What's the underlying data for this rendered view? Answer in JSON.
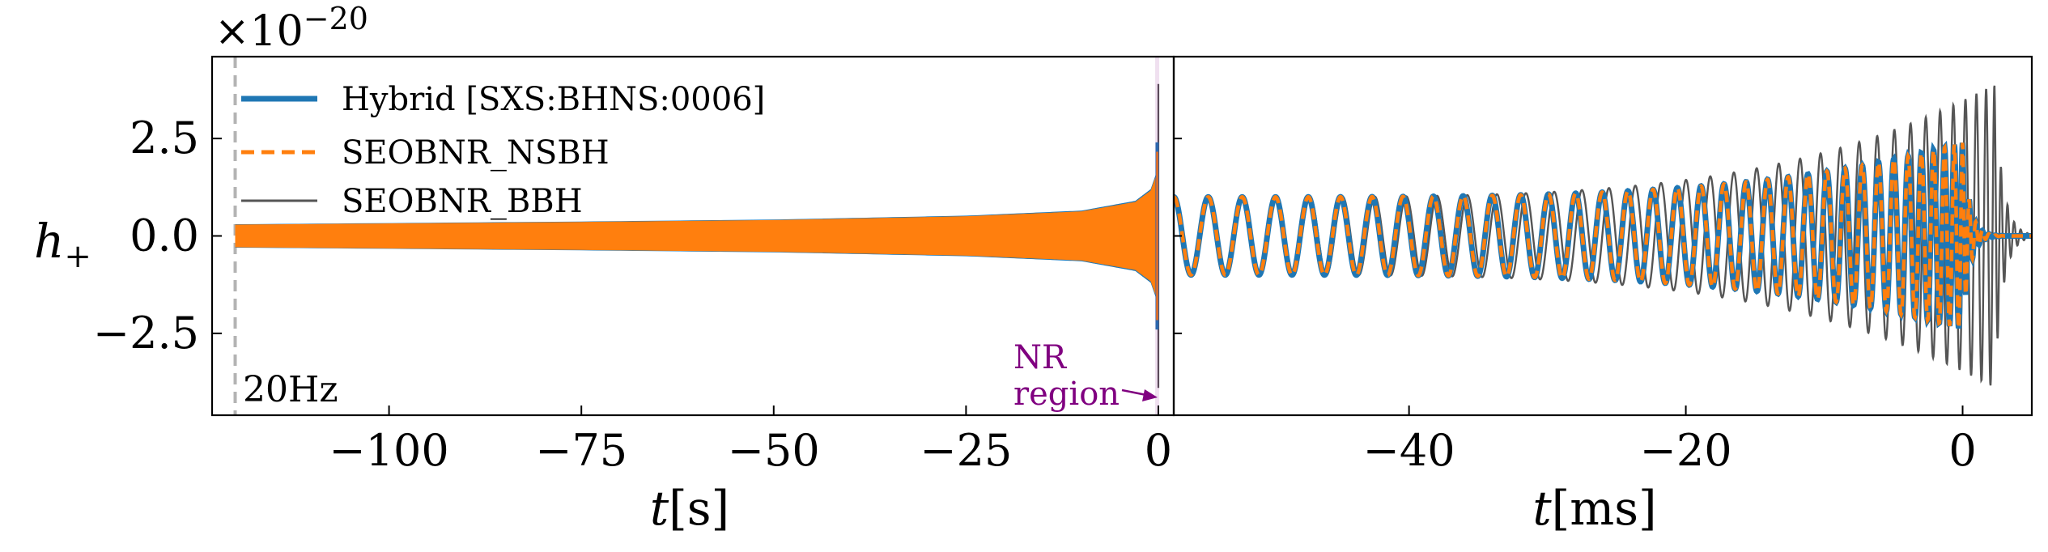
{
  "colors": {
    "hybrid": "#1f77b4",
    "nsbh": "#ff7f0e",
    "bbh": "#555555",
    "marker20hz": "#b3b3b3",
    "nr_annotation": "#800080",
    "axes": "#000000"
  },
  "chart_data": [
    {
      "panel": "left",
      "type": "line",
      "ylabel": "h+",
      "ylabel_main": "h",
      "ylabel_sub": "+",
      "offset_label_prefix": "×10",
      "offset_label_exp": "−20",
      "xlabel": "t[s]",
      "xlabel_var": "t",
      "xlabel_unit": "[s]",
      "xlim": [
        -123,
        2
      ],
      "ylim": [
        -4.6,
        4.6
      ],
      "xticks": [
        -100,
        -75,
        -50,
        -25,
        0
      ],
      "xtick_labels": [
        "−100",
        "−75",
        "−50",
        "−25",
        "0"
      ],
      "yticks": [
        2.5,
        0.0,
        -2.5
      ],
      "ytick_labels": [
        "2.5",
        "0.0",
        "−2.5"
      ],
      "marker_line_x": -120,
      "marker_label": "20Hz",
      "nr_region_x": -0.1,
      "annotation": [
        "NR",
        "region"
      ],
      "series": [
        {
          "name": "Hybrid [SXS:BHNS:0006]",
          "peak_amplitude": 2.4
        },
        {
          "name": "SEOBNR_NSBH",
          "peak_amplitude": 2.4
        },
        {
          "name": "SEOBNR_BBH",
          "peak_amplitude": 3.9
        }
      ],
      "envelope": {
        "x": [
          -120,
          -100,
          -75,
          -50,
          -25,
          -10,
          -3,
          -1,
          -0.3,
          -0.05,
          0.0
        ],
        "amplitude": [
          0.3,
          0.33,
          0.37,
          0.42,
          0.52,
          0.65,
          0.9,
          1.2,
          1.6,
          2.1,
          2.4
        ]
      }
    },
    {
      "panel": "right",
      "type": "line",
      "xlabel": "t[ms]",
      "xlabel_var": "t",
      "xlabel_unit": "[ms]",
      "xlim": [
        -57,
        5
      ],
      "ylim": [
        -4.6,
        4.6
      ],
      "xticks": [
        -40,
        -20,
        0
      ],
      "xtick_labels": [
        "−40",
        "−20",
        "0"
      ],
      "series": [
        {
          "name": "Hybrid [SXS:BHNS:0006]",
          "t_peak": 0.0,
          "amplitude_start": 1.0,
          "amplitude_peak": 2.4,
          "cycles_visible": 34,
          "ringdown_tau_ms": 0.5
        },
        {
          "name": "SEOBNR_NSBH",
          "t_peak": 0.0,
          "amplitude_start": 1.0,
          "amplitude_peak": 2.4,
          "cycles_visible": 34,
          "ringdown_tau_ms": 0.5
        },
        {
          "name": "SEOBNR_BBH",
          "t_peak": 2.3,
          "amplitude_start": 1.0,
          "amplitude_peak": 3.9,
          "cycles_visible": 35,
          "ringdown_tau_ms": 0.6
        }
      ]
    }
  ],
  "legend": [
    {
      "label": "Hybrid [SXS:BHNS:0006]",
      "style": "solid-thick"
    },
    {
      "label": "SEOBNR_NSBH",
      "style": "dashed"
    },
    {
      "label": "SEOBNR_BBH",
      "style": "solid-thin"
    }
  ]
}
